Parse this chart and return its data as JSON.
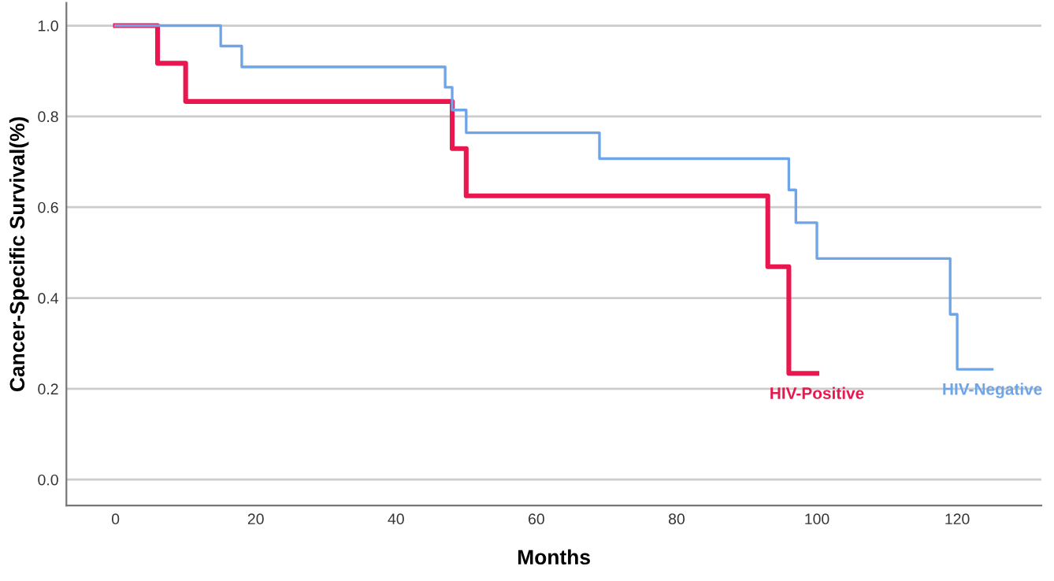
{
  "chart_data": {
    "type": "step",
    "xlabel": "Months",
    "ylabel": "Cancer-Specific Survival(%)",
    "xlim": [
      -7,
      132
    ],
    "ylim": [
      -0.057,
      1.05
    ],
    "xticks": [
      0,
      20,
      40,
      60,
      80,
      100,
      120
    ],
    "yticks": [
      {
        "value": 0,
        "label": "0.0"
      },
      {
        "value": 0.2,
        "label": "0.2"
      },
      {
        "value": 0.4,
        "label": "0.4"
      },
      {
        "value": 0.6,
        "label": "0.6"
      },
      {
        "value": 0.8,
        "label": "0.8"
      },
      {
        "value": 1,
        "label": "1.0"
      }
    ],
    "grid": "y",
    "legend": false,
    "series": [
      {
        "name": "HIV-Positive",
        "color": "#e8174f",
        "x": [
          0,
          6,
          10,
          48,
          50,
          93,
          96,
          100
        ],
        "values": [
          1.0,
          0.917,
          0.833,
          0.729,
          0.625,
          0.469,
          0.234,
          0.234
        ]
      },
      {
        "name": "HIV-Negative",
        "color": "#6ea5e8",
        "x": [
          0,
          15,
          18,
          47,
          48,
          50,
          69,
          96,
          97,
          100,
          119,
          120,
          125
        ],
        "values": [
          1.0,
          0.955,
          0.909,
          0.864,
          0.814,
          0.764,
          0.707,
          0.638,
          0.566,
          0.487,
          0.364,
          0.243,
          0.243
        ]
      }
    ]
  }
}
